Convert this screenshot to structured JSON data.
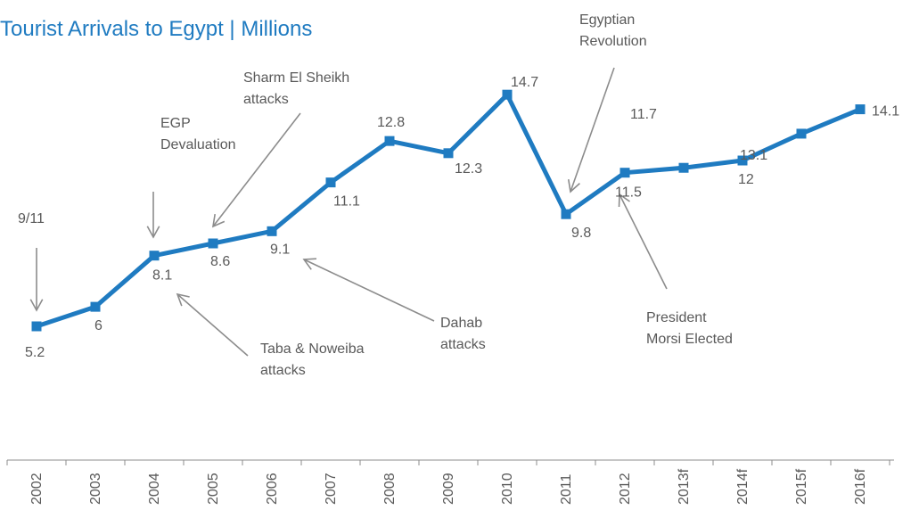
{
  "chart_data": {
    "type": "line",
    "title": "Tourist Arrivals to Egypt | Millions",
    "categories": [
      "2002",
      "2003",
      "2004",
      "2005",
      "2006",
      "2007",
      "2008",
      "2009",
      "2010",
      "2011",
      "2012",
      "2013f",
      "2014f",
      "2015f",
      "2016f"
    ],
    "values": [
      5.2,
      6,
      8.1,
      8.6,
      9.1,
      11.1,
      12.8,
      12.3,
      14.7,
      9.8,
      11.5,
      11.7,
      12,
      13.1,
      14.1
    ],
    "data_labels": [
      "5.2",
      "6",
      "8.1",
      "8.6",
      "9.1",
      "11.1",
      "12.8",
      "12.3",
      "14.7",
      "9.8",
      "11.5",
      "11.7",
      "12",
      "13.1",
      "14.1"
    ],
    "series_color": "#1f7bc1",
    "marker": "square",
    "grid": false,
    "legend": "none",
    "annotations": [
      {
        "lines": [
          "9/11"
        ],
        "points_to": "2002"
      },
      {
        "lines": [
          "EGP",
          "Devaluation"
        ],
        "points_to": "2004"
      },
      {
        "lines": [
          "Sharm El Sheikh",
          "attacks"
        ],
        "points_to": "2005"
      },
      {
        "lines": [
          "Taba & Noweiba",
          "attacks"
        ],
        "points_to": "2004"
      },
      {
        "lines": [
          "Dahab",
          "attacks"
        ],
        "points_to": "2006"
      },
      {
        "lines": [
          "Egyptian",
          "Revolution"
        ],
        "points_to": "2011"
      },
      {
        "lines": [
          "President",
          "Morsi Elected"
        ],
        "points_to": "2012"
      }
    ]
  }
}
